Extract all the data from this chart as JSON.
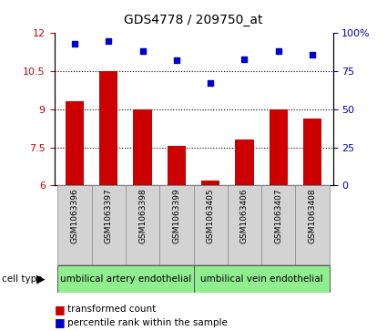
{
  "title": "GDS4778 / 209750_at",
  "samples": [
    "GSM1063396",
    "GSM1063397",
    "GSM1063398",
    "GSM1063399",
    "GSM1063405",
    "GSM1063406",
    "GSM1063407",
    "GSM1063408"
  ],
  "transformed_count": [
    9.3,
    10.5,
    9.0,
    7.55,
    6.2,
    7.8,
    9.0,
    8.65
  ],
  "percentile_rank": [
    93,
    95,
    88,
    82,
    67,
    83,
    88,
    86
  ],
  "ylim_left": [
    6,
    12
  ],
  "yticks_left": [
    6,
    7.5,
    9,
    10.5,
    12
  ],
  "yticks_right": [
    0,
    25,
    50,
    75,
    100
  ],
  "ytick_labels_right": [
    "0",
    "25",
    "50",
    "75",
    "100%"
  ],
  "bar_color": "#cc0000",
  "scatter_color": "#0000cc",
  "cell_type_labels": [
    "umbilical artery endothelial",
    "umbilical vein endothelial"
  ],
  "cell_type_color": "#90ee90",
  "legend_bar_label": "transformed count",
  "legend_scatter_label": "percentile rank within the sample",
  "left_axis_color": "#cc0000",
  "right_axis_color": "#0000cc",
  "title_fontsize": 10,
  "axis_tick_fontsize": 8,
  "label_fontsize": 6.5,
  "bar_width": 0.55
}
